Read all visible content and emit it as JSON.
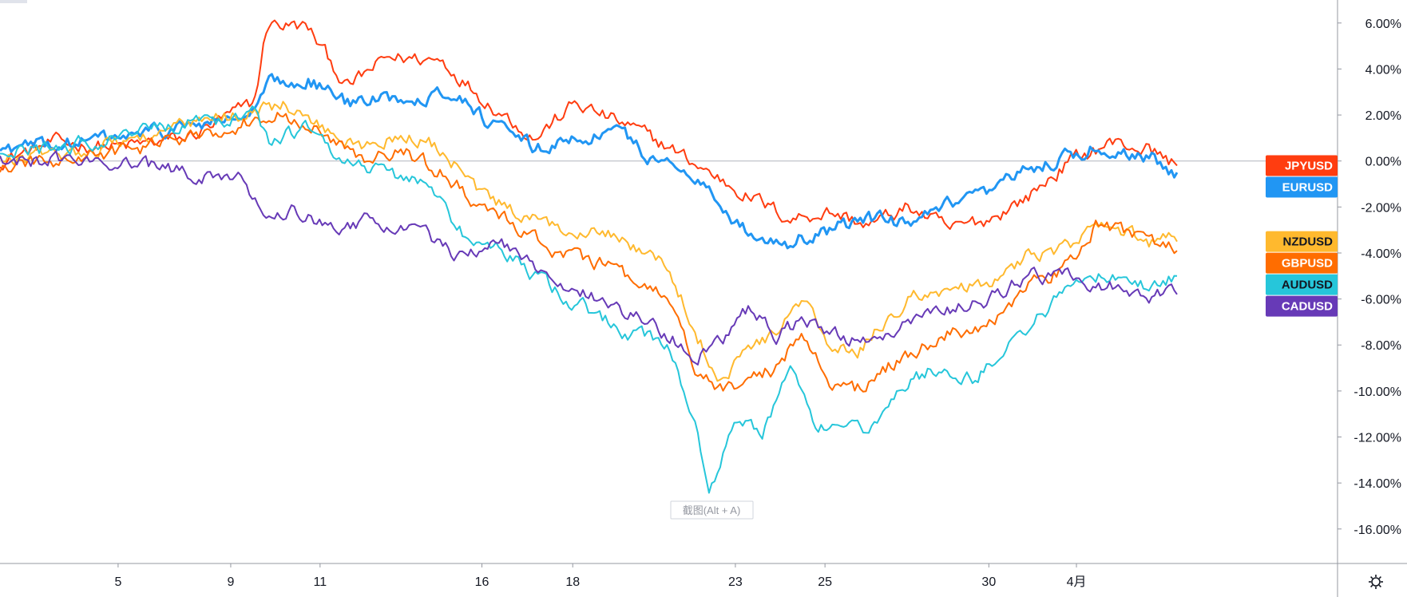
{
  "chart_data": {
    "type": "line",
    "y_axis": {
      "ticks": [
        "6.00%",
        "4.00%",
        "2.00%",
        "0.00%",
        "-2.00%",
        "-4.00%",
        "-6.00%",
        "-8.00%",
        "-10.00%",
        "-12.00%",
        "-14.00%",
        "-16.00%"
      ],
      "range": [
        -17.5,
        7
      ]
    },
    "x_axis": {
      "ticks": [
        "5",
        "9",
        "11",
        "16",
        "18",
        "23",
        "25",
        "30",
        "4月"
      ]
    },
    "grid": false,
    "zero_line": true,
    "tooltip_text": "截图(Alt + A)",
    "series": [
      {
        "name": "JPYUSD",
        "color": "#ff3d10",
        "label_text_color": "#ffffff",
        "last": -0.2,
        "keypoints": [
          [
            0,
            0.0
          ],
          [
            0.04,
            0.8
          ],
          [
            0.09,
            0.6
          ],
          [
            0.14,
            1.0
          ],
          [
            0.19,
            2.5
          ],
          [
            0.2,
            6.0
          ],
          [
            0.23,
            5.8
          ],
          [
            0.26,
            3.2
          ],
          [
            0.29,
            4.5
          ],
          [
            0.33,
            4.4
          ],
          [
            0.36,
            2.8
          ],
          [
            0.4,
            1.0
          ],
          [
            0.43,
            2.5
          ],
          [
            0.47,
            1.5
          ],
          [
            0.5,
            0.6
          ],
          [
            0.53,
            -0.5
          ],
          [
            0.56,
            -1.5
          ],
          [
            0.59,
            -2.5
          ],
          [
            0.62,
            -2.2
          ],
          [
            0.65,
            -2.8
          ],
          [
            0.68,
            -2.0
          ],
          [
            0.71,
            -3.0
          ],
          [
            0.74,
            -2.5
          ],
          [
            0.77,
            -1.5
          ],
          [
            0.8,
            0.0
          ],
          [
            0.83,
            0.8
          ],
          [
            0.86,
            0.5
          ],
          [
            0.88,
            -0.2
          ]
        ]
      },
      {
        "name": "EURUSD",
        "color": "#2196f3",
        "label_text_color": "#ffffff",
        "last": -0.5,
        "keypoints": [
          [
            0,
            0.5
          ],
          [
            0.04,
            0.7
          ],
          [
            0.09,
            1.0
          ],
          [
            0.14,
            1.5
          ],
          [
            0.19,
            2.0
          ],
          [
            0.2,
            3.3
          ],
          [
            0.23,
            3.6
          ],
          [
            0.26,
            2.5
          ],
          [
            0.3,
            2.8
          ],
          [
            0.34,
            3.0
          ],
          [
            0.37,
            1.5
          ],
          [
            0.4,
            0.5
          ],
          [
            0.43,
            1.0
          ],
          [
            0.46,
            1.3
          ],
          [
            0.49,
            0.0
          ],
          [
            0.52,
            -0.5
          ],
          [
            0.54,
            -2.0
          ],
          [
            0.56,
            -3.2
          ],
          [
            0.59,
            -3.5
          ],
          [
            0.62,
            -3.0
          ],
          [
            0.65,
            -2.5
          ],
          [
            0.68,
            -2.8
          ],
          [
            0.71,
            -2.0
          ],
          [
            0.74,
            -1.5
          ],
          [
            0.77,
            -0.3
          ],
          [
            0.8,
            0.2
          ],
          [
            0.82,
            0.6
          ],
          [
            0.86,
            0.2
          ],
          [
            0.88,
            -0.5
          ]
        ]
      },
      {
        "name": "NZDUSD",
        "color": "#ffb92e",
        "label_text_color": "#131722",
        "last": -3.5,
        "keypoints": [
          [
            0,
            0.0
          ],
          [
            0.05,
            0.3
          ],
          [
            0.1,
            1.0
          ],
          [
            0.14,
            1.5
          ],
          [
            0.19,
            2.2
          ],
          [
            0.21,
            2.5
          ],
          [
            0.24,
            1.5
          ],
          [
            0.27,
            0.5
          ],
          [
            0.3,
            1.2
          ],
          [
            0.33,
            0.5
          ],
          [
            0.36,
            -1.5
          ],
          [
            0.39,
            -2.5
          ],
          [
            0.42,
            -3.0
          ],
          [
            0.45,
            -2.8
          ],
          [
            0.48,
            -4.0
          ],
          [
            0.5,
            -4.5
          ],
          [
            0.52,
            -7.5
          ],
          [
            0.54,
            -9.5
          ],
          [
            0.56,
            -8.0
          ],
          [
            0.58,
            -7.5
          ],
          [
            0.6,
            -6.0
          ],
          [
            0.62,
            -8.0
          ],
          [
            0.64,
            -8.5
          ],
          [
            0.66,
            -7.0
          ],
          [
            0.68,
            -6.0
          ],
          [
            0.71,
            -5.5
          ],
          [
            0.74,
            -5.5
          ],
          [
            0.77,
            -4.0
          ],
          [
            0.8,
            -3.8
          ],
          [
            0.82,
            -2.8
          ],
          [
            0.86,
            -3.5
          ],
          [
            0.88,
            -3.5
          ]
        ]
      },
      {
        "name": "GBPUSD",
        "color": "#ff6d00",
        "label_text_color": "#ffffff",
        "last": -3.9,
        "keypoints": [
          [
            0,
            -0.3
          ],
          [
            0.05,
            0.0
          ],
          [
            0.1,
            0.5
          ],
          [
            0.14,
            1.0
          ],
          [
            0.19,
            1.8
          ],
          [
            0.21,
            2.2
          ],
          [
            0.24,
            1.2
          ],
          [
            0.27,
            0.0
          ],
          [
            0.3,
            0.5
          ],
          [
            0.33,
            -0.5
          ],
          [
            0.36,
            -2.0
          ],
          [
            0.39,
            -3.0
          ],
          [
            0.42,
            -4.0
          ],
          [
            0.45,
            -4.5
          ],
          [
            0.48,
            -5.5
          ],
          [
            0.5,
            -6.0
          ],
          [
            0.52,
            -9.0
          ],
          [
            0.54,
            -10.0
          ],
          [
            0.56,
            -9.5
          ],
          [
            0.58,
            -9.0
          ],
          [
            0.6,
            -7.5
          ],
          [
            0.62,
            -9.5
          ],
          [
            0.64,
            -10.0
          ],
          [
            0.66,
            -9.0
          ],
          [
            0.68,
            -8.5
          ],
          [
            0.71,
            -7.5
          ],
          [
            0.74,
            -7.0
          ],
          [
            0.77,
            -5.5
          ],
          [
            0.8,
            -4.5
          ],
          [
            0.82,
            -2.7
          ],
          [
            0.86,
            -3.5
          ],
          [
            0.88,
            -3.9
          ]
        ]
      },
      {
        "name": "AUDUSD",
        "color": "#26c6da",
        "label_text_color": "#131722",
        "last": -5.0,
        "keypoints": [
          [
            0,
            0.3
          ],
          [
            0.05,
            0.6
          ],
          [
            0.1,
            1.2
          ],
          [
            0.14,
            1.6
          ],
          [
            0.19,
            2.0
          ],
          [
            0.2,
            0.8
          ],
          [
            0.23,
            1.5
          ],
          [
            0.26,
            0.0
          ],
          [
            0.29,
            -0.5
          ],
          [
            0.32,
            -1.0
          ],
          [
            0.35,
            -3.5
          ],
          [
            0.38,
            -4.0
          ],
          [
            0.41,
            -5.5
          ],
          [
            0.44,
            -6.5
          ],
          [
            0.47,
            -7.5
          ],
          [
            0.5,
            -8.0
          ],
          [
            0.52,
            -11.5
          ],
          [
            0.53,
            -14.5
          ],
          [
            0.55,
            -11.0
          ],
          [
            0.57,
            -12.0
          ],
          [
            0.59,
            -9.0
          ],
          [
            0.61,
            -11.5
          ],
          [
            0.63,
            -12.0
          ],
          [
            0.65,
            -11.5
          ],
          [
            0.67,
            -10.0
          ],
          [
            0.7,
            -9.0
          ],
          [
            0.73,
            -9.5
          ],
          [
            0.76,
            -7.5
          ],
          [
            0.79,
            -6.0
          ],
          [
            0.82,
            -5.0
          ],
          [
            0.86,
            -5.5
          ],
          [
            0.88,
            -5.0
          ]
        ]
      },
      {
        "name": "CADUSD",
        "color": "#673ab7",
        "label_text_color": "#ffffff",
        "last": -5.8,
        "keypoints": [
          [
            0,
            0.0
          ],
          [
            0.05,
            0.0
          ],
          [
            0.09,
            0.0
          ],
          [
            0.13,
            -0.5
          ],
          [
            0.18,
            -0.6
          ],
          [
            0.2,
            -2.5
          ],
          [
            0.22,
            -2.0
          ],
          [
            0.25,
            -3.0
          ],
          [
            0.28,
            -2.5
          ],
          [
            0.31,
            -3.0
          ],
          [
            0.34,
            -4.0
          ],
          [
            0.37,
            -3.5
          ],
          [
            0.4,
            -4.5
          ],
          [
            0.43,
            -5.5
          ],
          [
            0.46,
            -6.5
          ],
          [
            0.5,
            -7.5
          ],
          [
            0.52,
            -8.5
          ],
          [
            0.54,
            -8.0
          ],
          [
            0.56,
            -6.5
          ],
          [
            0.58,
            -7.5
          ],
          [
            0.6,
            -7.0
          ],
          [
            0.62,
            -7.5
          ],
          [
            0.65,
            -8.0
          ],
          [
            0.68,
            -7.0
          ],
          [
            0.71,
            -6.5
          ],
          [
            0.74,
            -6.0
          ],
          [
            0.77,
            -5.0
          ],
          [
            0.8,
            -5.0
          ],
          [
            0.83,
            -5.5
          ],
          [
            0.86,
            -5.8
          ],
          [
            0.88,
            -5.8
          ]
        ]
      }
    ]
  },
  "toolbar": {
    "settings_icon": "gear-icon"
  }
}
